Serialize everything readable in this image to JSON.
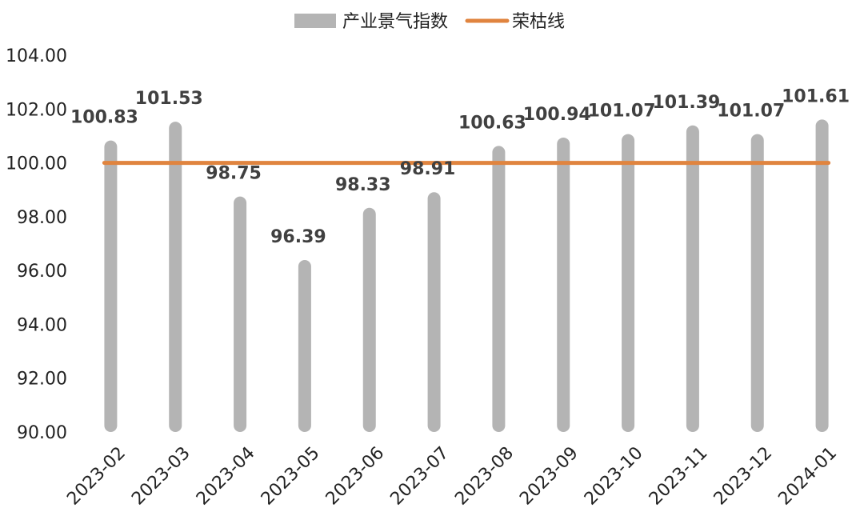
{
  "chart_data": {
    "type": "bar",
    "categories": [
      "2023-02",
      "2023-03",
      "2023-04",
      "2023-05",
      "2023-06",
      "2023-07",
      "2023-08",
      "2023-09",
      "2023-10",
      "2023-11",
      "2023-12",
      "2024-01"
    ],
    "series": [
      {
        "name": "产业景气指数",
        "type": "bar",
        "color": "#b4b4b4",
        "values": [
          100.83,
          101.53,
          98.75,
          96.39,
          98.33,
          98.91,
          100.63,
          100.94,
          101.07,
          101.39,
          101.07,
          101.61
        ]
      },
      {
        "name": "荣枯线",
        "type": "line",
        "color": "#e0843f",
        "values": [
          100,
          100,
          100,
          100,
          100,
          100,
          100,
          100,
          100,
          100,
          100,
          100
        ]
      }
    ],
    "data_labels": [
      "100.83",
      "101.53",
      "98.75",
      "96.39",
      "98.33",
      "98.91",
      "100.63",
      "100.94",
      "101.07",
      "101.39",
      "101.07",
      "101.61"
    ],
    "ylim": [
      90,
      104
    ],
    "yticks": [
      "90.00",
      "92.00",
      "94.00",
      "96.00",
      "98.00",
      "100.00",
      "102.00",
      "104.00"
    ],
    "legend_position": "top-center",
    "grid": false
  }
}
